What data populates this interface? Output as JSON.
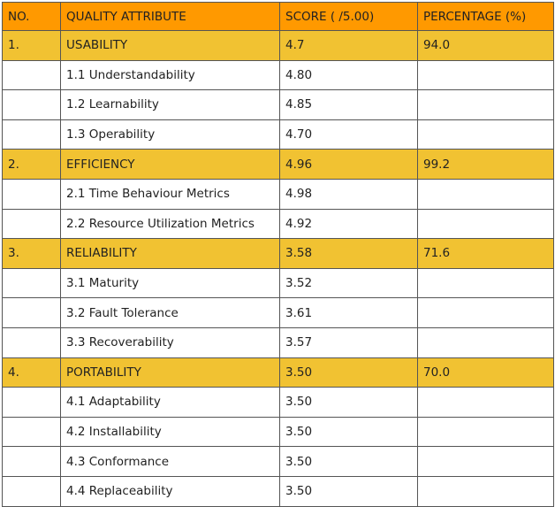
{
  "headers": [
    "NO.",
    "QUALITY ATTRIBUTE",
    "SCORE ( /5.00)",
    "PERCENTAGE (%)"
  ],
  "rows": [
    {
      "no": "1.",
      "attribute": "USABILITY",
      "score": "4.7",
      "percentage": "94.0"
    },
    {
      "no": "",
      "attribute": "1.1 Understandability",
      "score": "4.80",
      "percentage": ""
    },
    {
      "no": "",
      "attribute": "1.2 Learnability",
      "score": "4.85",
      "percentage": ""
    },
    {
      "no": "",
      "attribute": "1.3 Operability",
      "score": "4.70",
      "percentage": ""
    },
    {
      "no": "2.",
      "attribute": "EFFICIENCY",
      "score": "4.96",
      "percentage": "99.2"
    },
    {
      "no": "",
      "attribute": "2.1 Time Behaviour Metrics",
      "score": "4.98",
      "percentage": ""
    },
    {
      "no": "",
      "attribute": "2.2 Resource Utilization Metrics",
      "score": "4.92",
      "percentage": ""
    },
    {
      "no": "3.",
      "attribute": "RELIABILITY",
      "score": "3.58",
      "percentage": "71.6"
    },
    {
      "no": "",
      "attribute": "3.1 Maturity",
      "score": "3.52",
      "percentage": ""
    },
    {
      "no": "",
      "attribute": "3.2 Fault Tolerance",
      "score": "3.61",
      "percentage": ""
    },
    {
      "no": "",
      "attribute": "3.3 Recoverability",
      "score": "3.57",
      "percentage": ""
    },
    {
      "no": "4.",
      "attribute": "PORTABILITY",
      "score": "3.50",
      "percentage": "70.0"
    },
    {
      "no": "",
      "attribute": "4.1 Adaptability",
      "score": "3.50",
      "percentage": ""
    },
    {
      "no": "",
      "attribute": "4.2 Installability",
      "score": "3.50",
      "percentage": ""
    },
    {
      "no": "",
      "attribute": "4.3 Conformance",
      "score": "3.50",
      "percentage": ""
    },
    {
      "no": "",
      "attribute": "4.4 Replaceability",
      "score": "3.50",
      "percentage": ""
    }
  ],
  "colors": {
    "header": "#ff9900",
    "group_row": "#f1c232",
    "sub_row": "#ffffff",
    "border": "#555555"
  }
}
